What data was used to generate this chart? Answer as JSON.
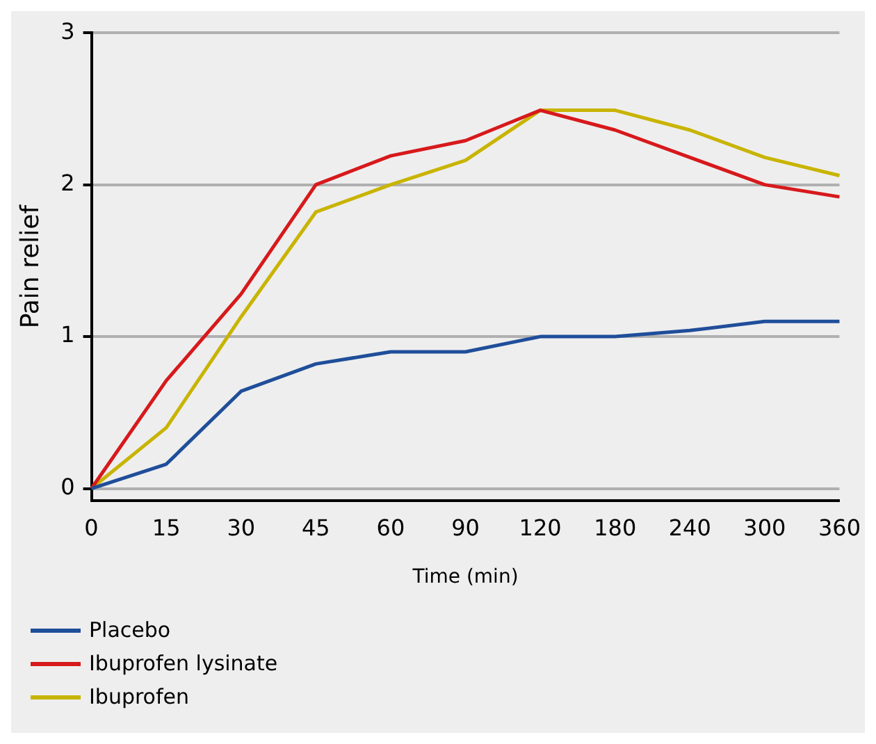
{
  "chart_data": {
    "type": "line",
    "xlabel": "Time (min)",
    "ylabel": "Pain relief",
    "categories": [
      "0",
      "15",
      "30",
      "45",
      "60",
      "90",
      "120",
      "180",
      "240",
      "300",
      "360"
    ],
    "series": [
      {
        "name": "Placebo",
        "color": "#1f4e9a",
        "values": [
          0,
          0.16,
          0.64,
          0.82,
          0.9,
          0.9,
          1.0,
          1.0,
          1.04,
          1.1,
          1.1
        ]
      },
      {
        "name": "Ibuprofen lysinate",
        "color": "#d7191c",
        "values": [
          0,
          0.71,
          1.28,
          2.0,
          2.19,
          2.29,
          2.49,
          2.36,
          2.18,
          2.0,
          1.92
        ]
      },
      {
        "name": "Ibuprofen",
        "color": "#c8b400",
        "values": [
          0,
          0.4,
          1.13,
          1.82,
          2.0,
          2.16,
          2.49,
          2.49,
          2.36,
          2.18,
          2.06
        ]
      }
    ],
    "ylim": [
      -0.08,
      3
    ],
    "yticks": [
      0,
      1,
      2,
      3
    ],
    "grid": "y",
    "legend": "bottom left",
    "marker": "none",
    "line_style": "solid"
  }
}
